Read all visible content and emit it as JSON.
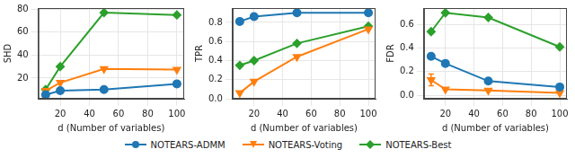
{
  "chart_data": [
    {
      "type": "line",
      "x_label": "d (Number of variables)",
      "y_label": "SHD",
      "x": [
        10,
        20,
        50,
        100
      ],
      "xlim": [
        5,
        105
      ],
      "xticks": [
        20,
        40,
        60,
        80,
        100
      ],
      "ylim": [
        2,
        81
      ],
      "yticks": [
        20,
        40,
        60,
        80
      ],
      "grid": true,
      "legend": "bottom",
      "series": [
        {
          "name": "NOTEARS-ADMM",
          "color": "#1f77b4",
          "marker": "circle",
          "values": [
            5.5,
            9,
            10,
            15
          ]
        },
        {
          "name": "NOTEARS-Voting",
          "color": "#ff7f0e",
          "marker": "triangle_down",
          "values": [
            9,
            16,
            28,
            27.5
          ]
        },
        {
          "name": "NOTEARS-Best",
          "color": "#2ca02c",
          "marker": "diamond",
          "values": [
            10,
            30,
            77,
            75
          ]
        }
      ]
    },
    {
      "type": "line",
      "x_label": "d (Number of variables)",
      "y_label": "TPR",
      "x": [
        10,
        20,
        50,
        100
      ],
      "xlim": [
        5,
        105
      ],
      "xticks": [
        20,
        40,
        60,
        80,
        100
      ],
      "ylim": [
        0,
        0.95
      ],
      "yticks": [
        {
          "value": 0,
          "label": "0.0"
        },
        0.2,
        0.4,
        0.6,
        0.8
      ],
      "grid": true,
      "series": [
        {
          "name": "NOTEARS-ADMM",
          "color": "#1f77b4",
          "marker": "circle",
          "values": [
            0.81,
            0.86,
            0.9,
            0.9
          ],
          "errors": [
            0.02,
            null,
            null,
            null
          ]
        },
        {
          "name": "NOTEARS-Voting",
          "color": "#ff7f0e",
          "marker": "triangle_down",
          "values": [
            0.06,
            0.18,
            0.44,
            0.73
          ]
        },
        {
          "name": "NOTEARS-Best",
          "color": "#2ca02c",
          "marker": "diamond",
          "values": [
            0.35,
            0.4,
            0.58,
            0.76
          ]
        }
      ]
    },
    {
      "type": "line",
      "x_label": "d (Number of variables)",
      "y_label": "FDR",
      "x": [
        10,
        20,
        50,
        100
      ],
      "xlim": [
        5,
        105
      ],
      "xticks": [
        20,
        40,
        60,
        80,
        100
      ],
      "ylim": [
        -0.03,
        0.74
      ],
      "yticks": [
        {
          "value": 0,
          "label": "0.0"
        },
        0.2,
        0.4,
        0.6
      ],
      "grid": true,
      "series": [
        {
          "name": "NOTEARS-ADMM",
          "color": "#1f77b4",
          "marker": "circle",
          "values": [
            0.33,
            0.27,
            0.12,
            0.07
          ],
          "errors": [
            0.02,
            null,
            null,
            null
          ]
        },
        {
          "name": "NOTEARS-Voting",
          "color": "#ff7f0e",
          "marker": "triangle_down",
          "values": [
            0.13,
            0.05,
            0.04,
            0.02
          ],
          "errors": [
            0.05,
            null,
            null,
            null
          ]
        },
        {
          "name": "NOTEARS-Best",
          "color": "#2ca02c",
          "marker": "diamond",
          "values": [
            0.54,
            0.7,
            0.66,
            0.41
          ]
        }
      ]
    }
  ]
}
